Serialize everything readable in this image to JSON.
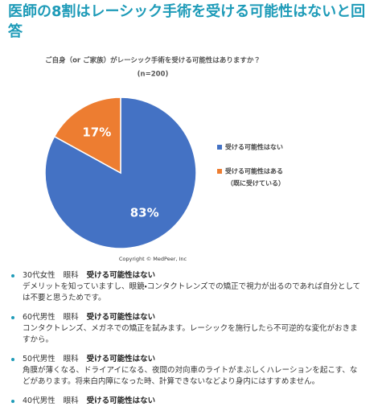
{
  "heading": "医師の8割はレーシック手術を受ける可能性はないと回答",
  "chart_data": {
    "type": "pie",
    "title": "ご自身（or ご家族）がレーシック手術を受ける可能性はありますか？",
    "subtitle": "(n=200)",
    "categories": [
      [
        "受ける可能性はない"
      ],
      [
        "受ける可能性はある",
        "（既に受けている）"
      ]
    ],
    "values": [
      83,
      17
    ],
    "value_labels": [
      "83%",
      "17%"
    ],
    "colors": [
      "#4472c4",
      "#ed7d31"
    ],
    "legend": "right",
    "footer": "Copyright © MedPeer, Inc"
  },
  "comments": [
    {
      "profile": "30代女性",
      "department": "眼科",
      "answer": "受ける可能性はない",
      "text": "デメリットを知っていますし、眼鏡・コンタクトレンズでの矯正で視力が出るのであれば自分としては不要と思うためです。"
    },
    {
      "profile": "60代男性",
      "department": "眼科",
      "answer": "受ける可能性はない",
      "text": "コンタクトレンズ、メガネでの矯正を試みます。レーシックを施行したら不可逆的な変化がおきますから。"
    },
    {
      "profile": "50代男性",
      "department": "眼科",
      "answer": "受ける可能性はない",
      "text": "角膜が薄くなる、ドライアイになる、夜間の対向車のライトがまぶしくハレーションを起こす、などがあります。将来白内障になった時、計算できないなどより身内にはすすめません。"
    },
    {
      "profile": "40代男性",
      "department": "眼科",
      "answer": "受ける可能性はない"
    }
  ]
}
